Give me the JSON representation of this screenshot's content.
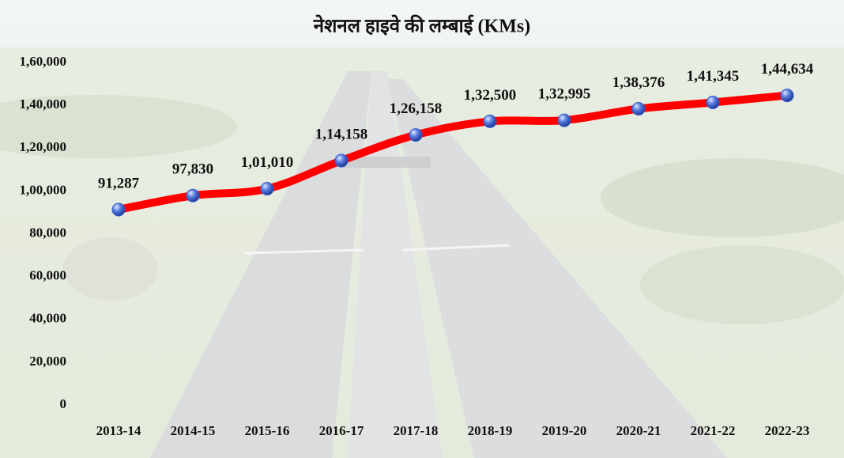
{
  "chart_data": {
    "type": "line",
    "title": "नेशनल हाइवे की लम्बाई (KMs)",
    "categories": [
      "2013-14",
      "2014-15",
      "2015-16",
      "2016-17",
      "2017-18",
      "2018-19",
      "2019-20",
      "2020-21",
      "2021-22",
      "2022-23"
    ],
    "series": [
      {
        "name": "नेशनल हाइवे की लम्बाई",
        "color": "#ff0000",
        "marker_color": "#3559c7",
        "values": [
          91287,
          97830,
          101010,
          114158,
          126158,
          132500,
          132995,
          138376,
          141345,
          144634
        ],
        "value_labels": [
          "91,287",
          "97,830",
          "1,01,010",
          "1,14,158",
          "1,26,158",
          "1,32,500",
          "1,32,995",
          "1,38,376",
          "1,41,345",
          "1,44,634"
        ]
      }
    ],
    "ylim": [
      0,
      160000
    ],
    "yticks": [
      0,
      {
        "value": 20000,
        "label": "20,000"
      },
      {
        "value": 40000,
        "label": "40,000"
      },
      {
        "value": 60000,
        "label": "60,000"
      },
      {
        "value": 80000,
        "label": "80,000"
      },
      {
        "value": 100000,
        "label": "1,00,000"
      },
      {
        "value": 120000,
        "label": "1,20,000"
      },
      {
        "value": 140000,
        "label": "1,40,000"
      },
      {
        "value": 160000,
        "label": "1,60,000"
      }
    ],
    "grid": false
  }
}
